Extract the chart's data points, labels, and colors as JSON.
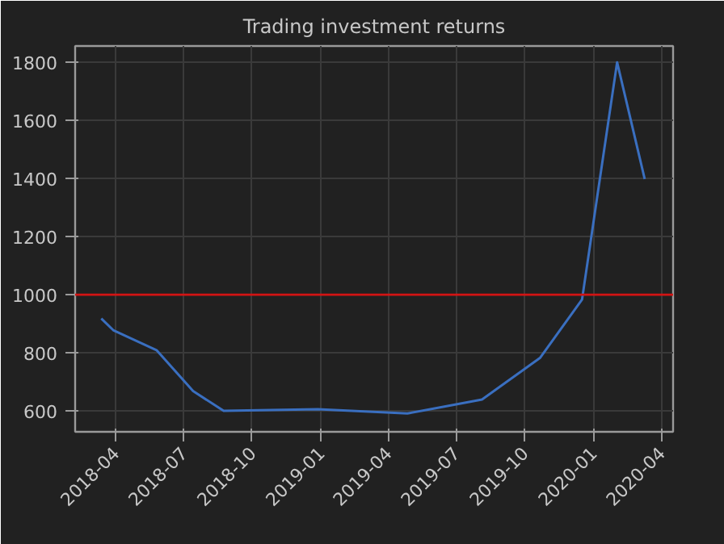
{
  "chart_data": {
    "type": "line",
    "title": "Trading investment returns",
    "x": [
      "2018-03-13",
      "2018-03-29",
      "2018-05-26",
      "2018-07-14",
      "2018-08-24",
      "2018-12-28",
      "2019-04-27",
      "2019-08-05",
      "2019-10-22",
      "2019-12-17",
      "2020-02-02",
      "2020-03-10"
    ],
    "series": [
      {
        "color": "#3a6fc0",
        "values": [
          918,
          878,
          809,
          668,
          600,
          606,
          591,
          639,
          783,
          983,
          1800,
          1398
        ]
      }
    ],
    "xlim": [
      "2018-02-06",
      "2020-04-17"
    ],
    "ylim": [
      528,
      1856
    ],
    "xticks": [
      {
        "value": "2018-04-01",
        "label": "2018-04"
      },
      {
        "value": "2018-07-01",
        "label": "2018-07"
      },
      {
        "value": "2018-10-01",
        "label": "2018-10"
      },
      {
        "value": "2019-01-01",
        "label": "2019-01"
      },
      {
        "value": "2019-04-01",
        "label": "2019-04"
      },
      {
        "value": "2019-07-01",
        "label": "2019-07"
      },
      {
        "value": "2019-10-01",
        "label": "2019-10"
      },
      {
        "value": "2020-01-01",
        "label": "2020-01"
      },
      {
        "value": "2020-04-01",
        "label": "2020-04"
      }
    ],
    "yticks": [
      600,
      800,
      1000,
      1200,
      1400,
      1600,
      1800
    ],
    "ref_lines": [
      {
        "axis": "y",
        "value": 1000,
        "color": "#d21414"
      }
    ],
    "grid": true
  }
}
